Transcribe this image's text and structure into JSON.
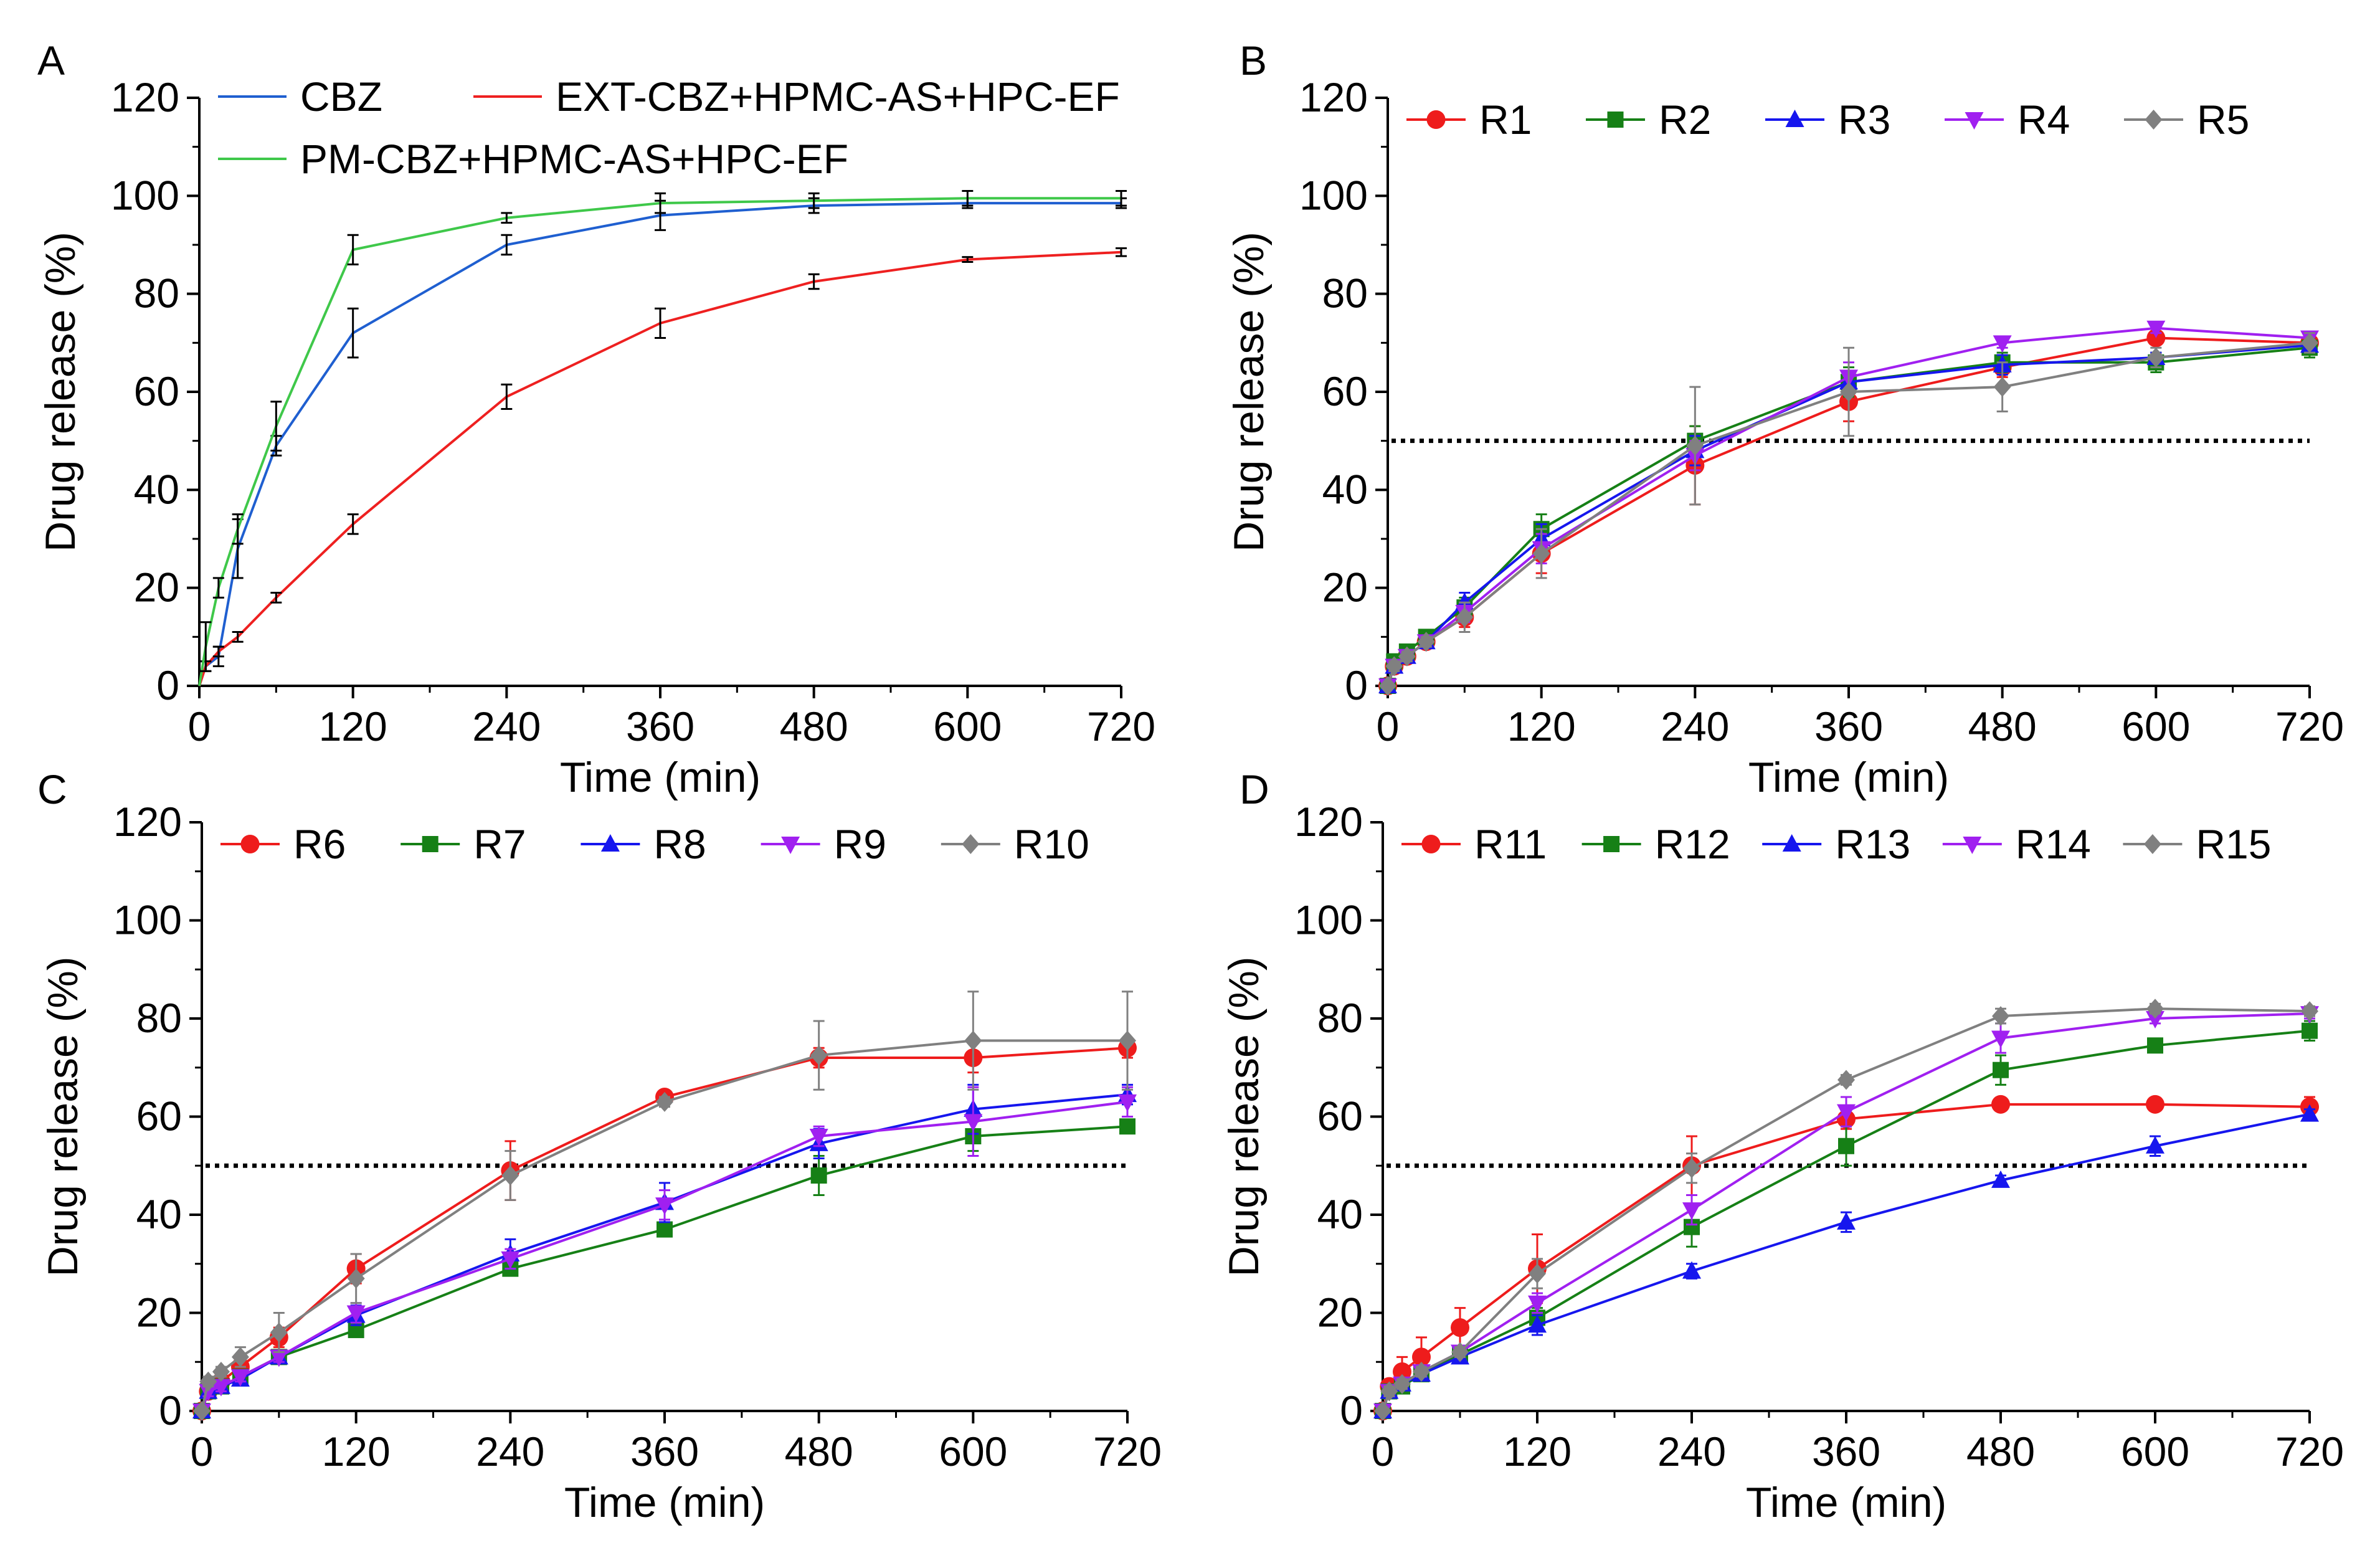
{
  "figure": {
    "xlabel": "Time (min)",
    "ylabel": "Drug release (%)",
    "colors": {
      "black": "#000000",
      "dotted": "#000000"
    }
  },
  "chart_data": [
    {
      "panel": "A",
      "type": "line",
      "xlim": [
        0,
        720
      ],
      "ylim": [
        0,
        120
      ],
      "xticks": [
        0,
        120,
        240,
        360,
        480,
        600,
        720
      ],
      "yticks": [
        0,
        20,
        40,
        60,
        80,
        100,
        120
      ],
      "x": [
        0,
        5,
        15,
        30,
        60,
        120,
        240,
        360,
        480,
        600,
        720
      ],
      "threshold": null,
      "series": [
        {
          "name": "CBZ",
          "color": "#1f5fd0",
          "marker": "none",
          "values": [
            0,
            4,
            6,
            28,
            49,
            72,
            90,
            96,
            98,
            98.5,
            98.5
          ],
          "errors": [
            0,
            1,
            2,
            6,
            2,
            5,
            2,
            3,
            1.5,
            1,
            1
          ]
        },
        {
          "name": "EXT-CBZ+HPMC-AS+HPC-EF",
          "color": "#ee2020",
          "marker": "none",
          "values": [
            0,
            4,
            7,
            10,
            18,
            33,
            59,
            74,
            82.5,
            87,
            88.5
          ],
          "errors": [
            0,
            1,
            1,
            1,
            1,
            2,
            2.5,
            3,
            1.5,
            0.5,
            0.8
          ]
        },
        {
          "name": "PM-CBZ+HPMC-AS+HPC-EF",
          "color": "#3fc84a",
          "marker": "none",
          "values": [
            0,
            8,
            20,
            32,
            53,
            89,
            95.5,
            98.5,
            99,
            99.5,
            99.5
          ],
          "errors": [
            0,
            5,
            2,
            3,
            5,
            3,
            1,
            2,
            1.5,
            1.5,
            1.5
          ]
        }
      ]
    },
    {
      "panel": "B",
      "type": "line",
      "xlim": [
        0,
        720
      ],
      "ylim": [
        0,
        120
      ],
      "xticks": [
        0,
        120,
        240,
        360,
        480,
        600,
        720
      ],
      "yticks": [
        0,
        20,
        40,
        60,
        80,
        100,
        120
      ],
      "x": [
        0,
        5,
        15,
        30,
        60,
        120,
        240,
        360,
        480,
        600,
        720
      ],
      "threshold": 50,
      "series": [
        {
          "name": "R1",
          "color": "#ee1c1c",
          "marker": "circle",
          "values": [
            0,
            4,
            6,
            9,
            14,
            27,
            45,
            58,
            65,
            71,
            70
          ],
          "errors": [
            0,
            1,
            1,
            1,
            2,
            4,
            8,
            4,
            2,
            1,
            1
          ]
        },
        {
          "name": "R2",
          "color": "#168016",
          "marker": "square",
          "values": [
            0,
            5,
            7,
            10,
            16,
            32,
            50,
            62,
            66,
            66,
            69
          ],
          "errors": [
            0,
            1,
            1,
            1,
            2,
            3,
            3,
            3,
            2,
            2,
            2
          ]
        },
        {
          "name": "R3",
          "color": "#1616ee",
          "marker": "triangle-up",
          "values": [
            0,
            4,
            6,
            9,
            17,
            30,
            48,
            62,
            65.5,
            67,
            69.5
          ],
          "errors": [
            0,
            1,
            1,
            1,
            2,
            3,
            3,
            2,
            2,
            1,
            1
          ]
        },
        {
          "name": "R4",
          "color": "#a020f0",
          "marker": "triangle-down",
          "values": [
            0,
            4,
            6,
            9,
            15,
            28,
            47,
            63,
            70,
            73,
            71
          ],
          "errors": [
            0,
            1,
            1,
            1,
            2,
            3,
            3,
            3,
            1,
            1,
            1
          ]
        },
        {
          "name": "R5",
          "color": "#808080",
          "marker": "diamond",
          "values": [
            0,
            4,
            6,
            9,
            14,
            27,
            49,
            60,
            61,
            67,
            70
          ],
          "errors": [
            0,
            1,
            1,
            1,
            3,
            5,
            12,
            9,
            5,
            2,
            2
          ]
        }
      ]
    },
    {
      "panel": "C",
      "type": "line",
      "xlim": [
        0,
        720
      ],
      "ylim": [
        0,
        120
      ],
      "xticks": [
        0,
        120,
        240,
        360,
        480,
        600,
        720
      ],
      "yticks": [
        0,
        20,
        40,
        60,
        80,
        100,
        120
      ],
      "x": [
        0,
        5,
        15,
        30,
        60,
        120,
        240,
        360,
        480,
        600,
        720
      ],
      "threshold": 50,
      "series": [
        {
          "name": "R6",
          "color": "#ee1c1c",
          "marker": "circle",
          "values": [
            0,
            4,
            6,
            9,
            15,
            29,
            49,
            64,
            72,
            72,
            74
          ],
          "errors": [
            0,
            1,
            1,
            1,
            2,
            3,
            6,
            1,
            2,
            3,
            2
          ]
        },
        {
          "name": "R7",
          "color": "#168016",
          "marker": "square",
          "values": [
            0,
            4,
            5,
            7,
            11,
            16.5,
            29,
            37,
            48,
            56,
            58
          ],
          "errors": [
            0,
            1,
            1,
            1,
            1,
            1,
            1,
            1,
            4,
            3,
            1
          ]
        },
        {
          "name": "R8",
          "color": "#1616ee",
          "marker": "triangle-up",
          "values": [
            0,
            4,
            5,
            6.5,
            11,
            19.5,
            32,
            42.5,
            54.5,
            61.5,
            64.5
          ],
          "errors": [
            0,
            1,
            1,
            1,
            1,
            2,
            3,
            4,
            3,
            5,
            2
          ]
        },
        {
          "name": "R9",
          "color": "#a020f0",
          "marker": "triangle-down",
          "values": [
            0,
            4,
            5,
            7,
            11,
            20,
            31,
            42,
            56,
            59,
            63
          ],
          "errors": [
            0,
            1,
            1,
            1,
            1,
            2,
            2,
            3,
            2,
            7,
            3
          ]
        },
        {
          "name": "R10",
          "color": "#808080",
          "marker": "diamond",
          "values": [
            0,
            6,
            8,
            11,
            16,
            27,
            48,
            63,
            72.5,
            75.5,
            75.5
          ],
          "errors": [
            0,
            1,
            1,
            2,
            4,
            5,
            5,
            1,
            7,
            10,
            10
          ]
        }
      ]
    },
    {
      "panel": "D",
      "type": "line",
      "xlim": [
        0,
        720
      ],
      "ylim": [
        0,
        120
      ],
      "xticks": [
        0,
        120,
        240,
        360,
        480,
        600,
        720
      ],
      "yticks": [
        0,
        20,
        40,
        60,
        80,
        100,
        120
      ],
      "x": [
        0,
        5,
        15,
        30,
        60,
        120,
        240,
        360,
        480,
        600,
        720
      ],
      "threshold": 50,
      "series": [
        {
          "name": "R11",
          "color": "#ee1c1c",
          "marker": "circle",
          "values": [
            0,
            5,
            8,
            11,
            17,
            29,
            50,
            59.5,
            62.5,
            62.5,
            62
          ],
          "errors": [
            0,
            1,
            3,
            4,
            4,
            7,
            6,
            2,
            1,
            1,
            2
          ]
        },
        {
          "name": "R12",
          "color": "#168016",
          "marker": "square",
          "values": [
            0,
            4,
            5,
            7.5,
            11.5,
            19,
            37.5,
            54,
            69.5,
            74.5,
            77.5
          ],
          "errors": [
            0,
            1,
            1,
            1,
            1,
            2,
            4,
            4,
            3,
            1,
            2
          ]
        },
        {
          "name": "R13",
          "color": "#1616ee",
          "marker": "triangle-up",
          "values": [
            0,
            4,
            5.5,
            7.5,
            11,
            17.5,
            28.5,
            38.5,
            47,
            54,
            60.5
          ],
          "errors": [
            0,
            1,
            1,
            1,
            1,
            2,
            1.5,
            2,
            1,
            2,
            1
          ]
        },
        {
          "name": "R14",
          "color": "#a020f0",
          "marker": "triangle-down",
          "values": [
            0,
            4,
            5.5,
            8,
            12,
            22,
            41,
            61,
            76,
            80,
            81
          ],
          "errors": [
            0,
            1,
            1,
            1,
            1,
            2,
            3,
            3,
            3,
            1,
            1
          ]
        },
        {
          "name": "R15",
          "color": "#808080",
          "marker": "diamond",
          "values": [
            0,
            4,
            5.5,
            8,
            12,
            28,
            49.5,
            67.5,
            80.5,
            82,
            81.5
          ],
          "errors": [
            0,
            1,
            1,
            1,
            1,
            3,
            3,
            1,
            1.5,
            1,
            1
          ]
        }
      ]
    }
  ]
}
